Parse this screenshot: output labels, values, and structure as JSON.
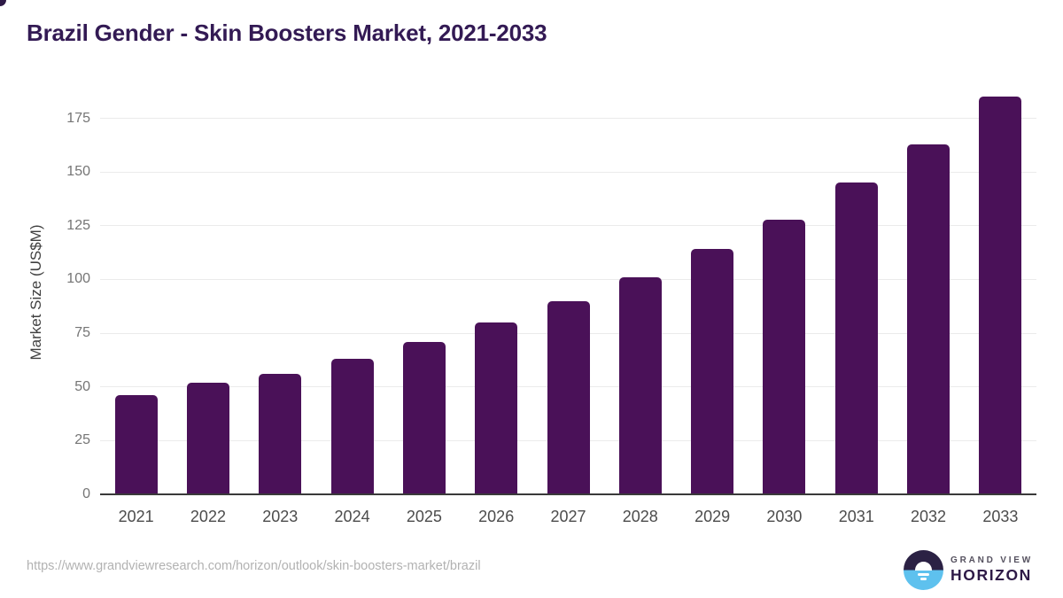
{
  "title": "Brazil Gender - Skin Boosters Market, 2021-2033",
  "source_url": "https://www.grandviewresearch.com/horizon/outlook/skin-boosters-market/brazil",
  "logo": {
    "icon": "horizon-sun-icon",
    "top_text": "GRAND VIEW",
    "bottom_text": "HORIZON"
  },
  "colors": {
    "bar": "#4a1158",
    "title": "#331a54",
    "grid": "#ebebeb",
    "axis": "#3a3a3a",
    "y_tick": "#757575",
    "x_label": "#4c4c4c",
    "url_text": "#b2b2b2",
    "logo_dark": "#2b2144",
    "logo_blue": "#5ec1ee"
  },
  "chart_data": {
    "type": "bar",
    "title": "Brazil Gender - Skin Boosters Market, 2021-2033",
    "categories": [
      "2021",
      "2022",
      "2023",
      "2024",
      "2025",
      "2026",
      "2027",
      "2028",
      "2029",
      "2030",
      "2031",
      "2032",
      "2033"
    ],
    "values": [
      46,
      52,
      56,
      63,
      71,
      80,
      90,
      101,
      114,
      128,
      145,
      163,
      185
    ],
    "xlabel": "",
    "ylabel": "Market Size (US$M)",
    "ylim": [
      0,
      189
    ],
    "yticks": [
      0,
      25,
      50,
      75,
      100,
      125,
      150,
      175
    ],
    "grid": true,
    "legend": false,
    "bar_color": "#4a1158"
  }
}
